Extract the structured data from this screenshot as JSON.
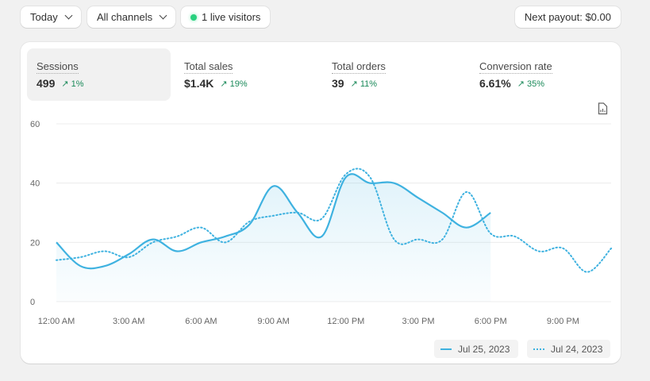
{
  "toolbar": {
    "date_filter": "Today",
    "channel_filter": "All channels",
    "live_visitors": "1 live visitors",
    "payout": "Next payout: $0.00"
  },
  "metrics": [
    {
      "label": "Sessions",
      "value": "499",
      "delta": "1%",
      "trend": "up",
      "active": true
    },
    {
      "label": "Total sales",
      "value": "$1.4K",
      "delta": "19%",
      "trend": "up"
    },
    {
      "label": "Total orders",
      "value": "39",
      "delta": "11%",
      "trend": "up"
    },
    {
      "label": "Conversion rate",
      "value": "6.61%",
      "delta": "35%",
      "trend": "up"
    }
  ],
  "icons": {
    "export": "report-file-icon",
    "trend": "arrow-up-right-icon",
    "live": "green-dot-icon"
  },
  "colors": {
    "series": "#3fb2e0",
    "positive": "#1b8a5a",
    "live": "#29d17f"
  },
  "chart_data": {
    "type": "line",
    "ylim": [
      0,
      60
    ],
    "y_ticks": [
      "0",
      "20",
      "40",
      "60"
    ],
    "x_ticks": [
      "12:00 AM",
      "3:00 AM",
      "6:00 AM",
      "9:00 AM",
      "12:00 PM",
      "3:00 PM",
      "6:00 PM",
      "9:00 PM"
    ],
    "x_hours": [
      0,
      1,
      2,
      3,
      4,
      5,
      6,
      7,
      8,
      9,
      10,
      11,
      12,
      13,
      14,
      15,
      16,
      17,
      18,
      19,
      20,
      21,
      22,
      23
    ],
    "grid": true,
    "legend_position": "bottom-right",
    "series": [
      {
        "name": "Jul 25, 2023",
        "style": "solid",
        "values": [
          20,
          12,
          12,
          16,
          21,
          17,
          20,
          22,
          26,
          39,
          30,
          22,
          42,
          40,
          40,
          35,
          30,
          25,
          30
        ]
      },
      {
        "name": "Jul 24, 2023",
        "style": "dotted",
        "values": [
          14,
          15,
          17,
          15,
          20,
          22,
          25,
          20,
          27,
          29,
          30,
          28,
          43,
          42,
          21,
          21,
          21,
          37,
          23,
          22,
          17,
          18,
          10,
          18
        ]
      }
    ]
  }
}
